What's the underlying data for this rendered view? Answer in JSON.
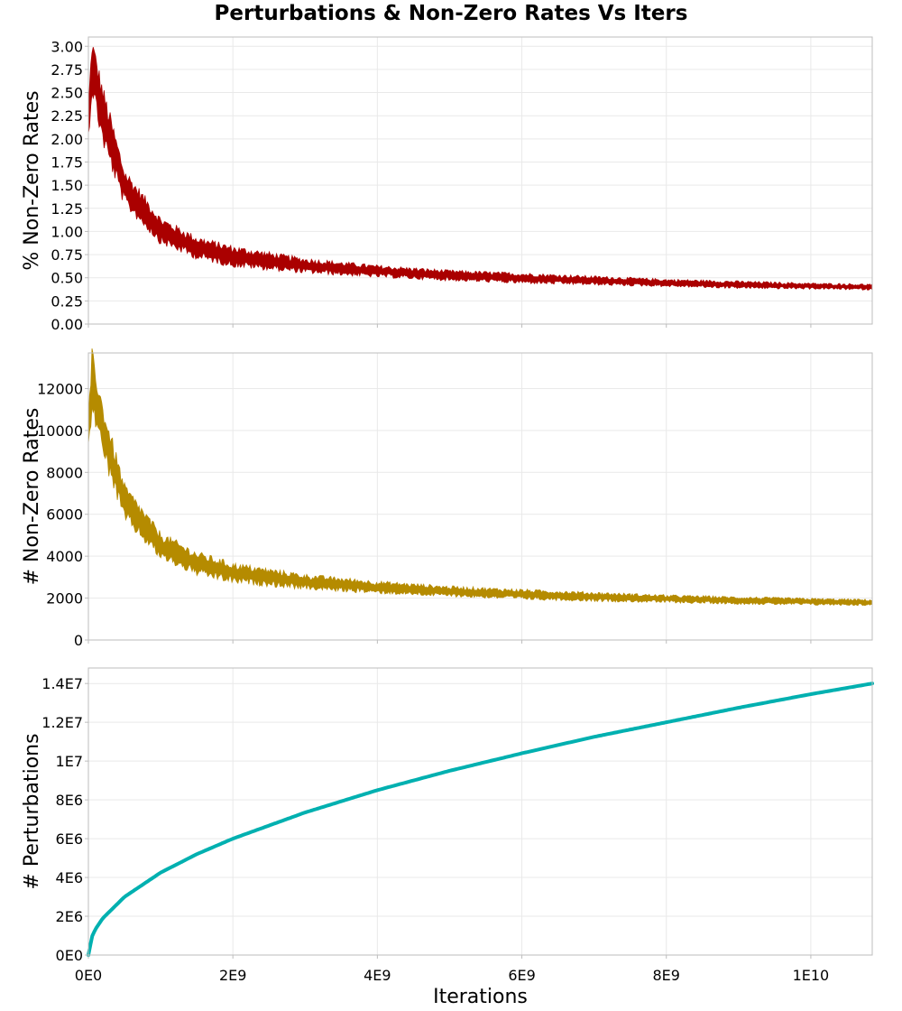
{
  "chart_data": [
    {
      "type": "area",
      "title": "Perturbations & Non-Zero Rates Vs Iters",
      "xlabel": "",
      "ylabel": "% Non-Zero Rates",
      "xlim": [
        0,
        10850000000
      ],
      "ylim": [
        0,
        3.1
      ],
      "xticks": [
        0,
        2000000000,
        4000000000,
        6000000000,
        8000000000,
        10000000000
      ],
      "xtick_labels": [
        "0E0",
        "2E9",
        "4E9",
        "6E9",
        "8E9",
        "1E10"
      ],
      "yticks": [
        0,
        0.25,
        0.5,
        0.75,
        1.0,
        1.25,
        1.5,
        1.75,
        2.0,
        2.25,
        2.5,
        2.75,
        3.0
      ],
      "ytick_labels": [
        "0.00",
        "0.25",
        "0.50",
        "0.75",
        "1.00",
        "1.25",
        "1.50",
        "1.75",
        "2.00",
        "2.25",
        "2.50",
        "2.75",
        "3.00"
      ],
      "color": "#aa0000",
      "series": [
        {
          "name": "% Non-Zero Rates",
          "x": [
            0,
            50000000,
            200000000,
            500000000,
            1000000000,
            1500000000,
            2000000000,
            3000000000,
            4000000000,
            5000000000,
            6000000000,
            7000000000,
            8000000000,
            9000000000,
            10000000000,
            10850000000
          ],
          "low": [
            2.05,
            2.6,
            2.05,
            1.35,
            0.92,
            0.75,
            0.66,
            0.58,
            0.53,
            0.49,
            0.46,
            0.44,
            0.42,
            0.4,
            0.39,
            0.38
          ],
          "high": [
            2.3,
            2.98,
            2.45,
            1.6,
            1.1,
            0.9,
            0.8,
            0.68,
            0.61,
            0.56,
            0.53,
            0.5,
            0.47,
            0.45,
            0.43,
            0.42
          ]
        }
      ]
    },
    {
      "type": "area",
      "xlabel": "",
      "ylabel": "# Non-Zero Rates",
      "xlim": [
        0,
        10850000000
      ],
      "ylim": [
        0,
        13700
      ],
      "xticks": [
        0,
        2000000000,
        4000000000,
        6000000000,
        8000000000,
        10000000000
      ],
      "xtick_labels": [
        "0E0",
        "2E9",
        "4E9",
        "6E9",
        "8E9",
        "1E10"
      ],
      "yticks": [
        0,
        2000,
        4000,
        6000,
        8000,
        10000,
        12000
      ],
      "ytick_labels": [
        "0",
        "2000",
        "4000",
        "6000",
        "8000",
        "10000",
        "12000"
      ],
      "color": "#b58b00",
      "series": [
        {
          "name": "# Non-Zero Rates",
          "x": [
            0,
            50000000,
            200000000,
            500000000,
            1000000000,
            1500000000,
            2000000000,
            3000000000,
            4000000000,
            5000000000,
            6000000000,
            7000000000,
            8000000000,
            9000000000,
            10000000000,
            10850000000
          ],
          "low": [
            9200,
            11500,
            9200,
            6000,
            4100,
            3300,
            2900,
            2550,
            2330,
            2170,
            2030,
            1930,
            1850,
            1780,
            1730,
            1700
          ],
          "high": [
            10200,
            13300,
            10800,
            7100,
            4900,
            4000,
            3500,
            3000,
            2700,
            2480,
            2330,
            2200,
            2080,
            2000,
            1930,
            1880
          ]
        }
      ]
    },
    {
      "type": "line",
      "xlabel": "Iterations",
      "ylabel": "# Perturbations",
      "xlim": [
        0,
        10850000000
      ],
      "ylim": [
        0,
        14800000
      ],
      "xticks": [
        0,
        2000000000,
        4000000000,
        6000000000,
        8000000000,
        10000000000
      ],
      "xtick_labels": [
        "0E0",
        "2E9",
        "4E9",
        "6E9",
        "8E9",
        "1E10"
      ],
      "yticks": [
        0,
        2000000,
        4000000,
        6000000,
        8000000,
        10000000,
        12000000,
        14000000
      ],
      "ytick_labels": [
        "0E0",
        "2E6",
        "4E6",
        "6E6",
        "8E6",
        "1E7",
        "1.2E7",
        "1.4E7"
      ],
      "color": "#00b0b0",
      "series": [
        {
          "name": "# Perturbations",
          "x": [
            0,
            50000000,
            100000000,
            200000000,
            500000000,
            1000000000,
            1500000000,
            2000000000,
            3000000000,
            4000000000,
            5000000000,
            6000000000,
            7000000000,
            8000000000,
            9000000000,
            10000000000,
            10850000000
          ],
          "y": [
            0,
            950000,
            1350000,
            1900000,
            3000000,
            4250000,
            5200000,
            6000000,
            7350000,
            8500000,
            9500000,
            10400000,
            11250000,
            12000000,
            12750000,
            13450000,
            14000000
          ]
        }
      ]
    }
  ]
}
